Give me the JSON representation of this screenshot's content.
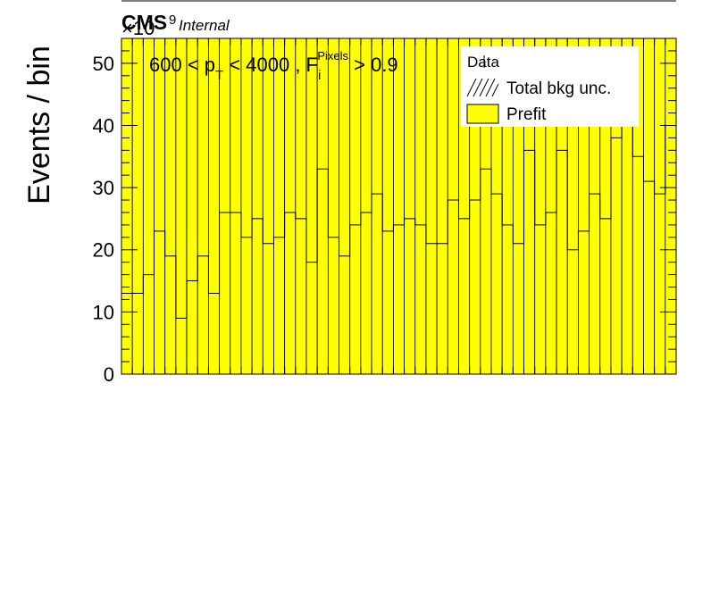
{
  "chart_data": {
    "type": "bar",
    "title": "",
    "xlabel": "",
    "ylabel": "Events / bin",
    "exponent_base": "×10",
    "exponent": "9",
    "ylim": [
      0,
      54
    ],
    "yticks": [
      0,
      10,
      20,
      30,
      40,
      50
    ],
    "series": [
      {
        "name": "Prefit",
        "fill": "#ffff00",
        "values": [
          13,
          13,
          16,
          23,
          19,
          9,
          15,
          19,
          13,
          26,
          26,
          22,
          25,
          21,
          22,
          26,
          25,
          18,
          33,
          22,
          19,
          24,
          26,
          29,
          23,
          24,
          25,
          24,
          21,
          21,
          28,
          25,
          28,
          33,
          29,
          24,
          21,
          36,
          24,
          26,
          36,
          20,
          23,
          29,
          25,
          38,
          43,
          35,
          31,
          29,
          40
        ]
      }
    ],
    "uncertainty_label": "Total bkg unc.",
    "data_label": "Data"
  },
  "labels": {
    "cms": "CMS",
    "internal": "Internal",
    "selection_a": "600 < p",
    "selection_sub_t": "T",
    "selection_b": " < 4000 , F",
    "selection_sub_i": "i",
    "selection_sup_pixels": "Pixels",
    "selection_c": " > 0.9"
  },
  "colors": {
    "prefit_fill": "#ffff00",
    "line": "#000000",
    "background": "#ffffff"
  }
}
